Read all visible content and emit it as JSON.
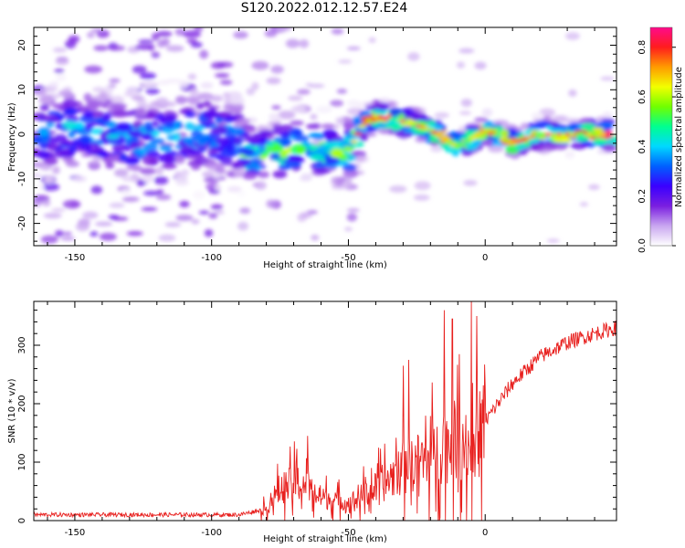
{
  "title": "S120.2022.012.12.57.E24",
  "chart_data": [
    {
      "type": "heatmap",
      "xlabel": "Height of straight line (km)",
      "ylabel": "Frequency (Hz)",
      "xlim": [
        -165,
        48
      ],
      "ylim": [
        -25,
        24
      ],
      "xticks": [
        -150,
        -100,
        -50,
        0
      ],
      "yticks": [
        -20,
        -10,
        0,
        10,
        20
      ],
      "ridge": [
        {
          "x": -165,
          "f": 0
        },
        {
          "x": -150,
          "f": 1
        },
        {
          "x": -130,
          "f": -1
        },
        {
          "x": -110,
          "f": 0
        },
        {
          "x": -95,
          "f": 0
        },
        {
          "x": -85,
          "f": -5
        },
        {
          "x": -75,
          "f": -4
        },
        {
          "x": -65,
          "f": -2
        },
        {
          "x": -55,
          "f": -5
        },
        {
          "x": -50,
          "f": -4
        },
        {
          "x": -45,
          "f": 2
        },
        {
          "x": -40,
          "f": 4
        },
        {
          "x": -30,
          "f": 3
        },
        {
          "x": -20,
          "f": 1
        },
        {
          "x": -10,
          "f": -3
        },
        {
          "x": 0,
          "f": 1
        },
        {
          "x": 10,
          "f": -2
        },
        {
          "x": 20,
          "f": 0
        },
        {
          "x": 30,
          "f": 0
        },
        {
          "x": 45,
          "f": 0
        }
      ],
      "colorbar": {
        "label": "Normalized spectral amplitude",
        "ticks": [
          0.0,
          0.2,
          0.4,
          0.6,
          0.8
        ],
        "tick_labels": [
          "0.0",
          "0.2",
          "0.4",
          "0.6",
          "0.8"
        ],
        "range": [
          0,
          0.88
        ],
        "colors": [
          "#ffffff",
          "#c9a6f0",
          "#7a1fe0",
          "#3a00ff",
          "#0060ff",
          "#00d8ff",
          "#00ff90",
          "#70ff00",
          "#f2ff00",
          "#ff9b00",
          "#ff1d1d",
          "#ff0a8c"
        ]
      }
    },
    {
      "type": "line",
      "xlabel": "Height of straight line (km)",
      "ylabel": "SNR (10 * v/v)",
      "xlim": [
        -165,
        48
      ],
      "ylim": [
        0,
        375
      ],
      "xticks": [
        -150,
        -100,
        -50,
        0
      ],
      "yticks": [
        0,
        100,
        200,
        300
      ],
      "line_color": "#e8201e",
      "trend": [
        {
          "x": -165,
          "y": 10
        },
        {
          "x": -90,
          "y": 10
        },
        {
          "x": -80,
          "y": 20
        },
        {
          "x": -75,
          "y": 55
        },
        {
          "x": -68,
          "y": 65
        },
        {
          "x": -60,
          "y": 40
        },
        {
          "x": -50,
          "y": 30
        },
        {
          "x": -40,
          "y": 55
        },
        {
          "x": -30,
          "y": 90
        },
        {
          "x": -20,
          "y": 110
        },
        {
          "x": -10,
          "y": 140
        },
        {
          "x": -5,
          "y": 120
        },
        {
          "x": 0,
          "y": 170
        },
        {
          "x": 10,
          "y": 235
        },
        {
          "x": 20,
          "y": 280
        },
        {
          "x": 30,
          "y": 305
        },
        {
          "x": 40,
          "y": 320
        },
        {
          "x": 48,
          "y": 330
        }
      ],
      "spikes": [
        {
          "x": -65,
          "y": 145
        },
        {
          "x": -30,
          "y": 265
        },
        {
          "x": -28,
          "y": 275
        },
        {
          "x": -15,
          "y": 360
        },
        {
          "x": -12,
          "y": 345
        },
        {
          "x": -5,
          "y": 375
        },
        {
          "x": -3,
          "y": 350
        }
      ]
    }
  ]
}
